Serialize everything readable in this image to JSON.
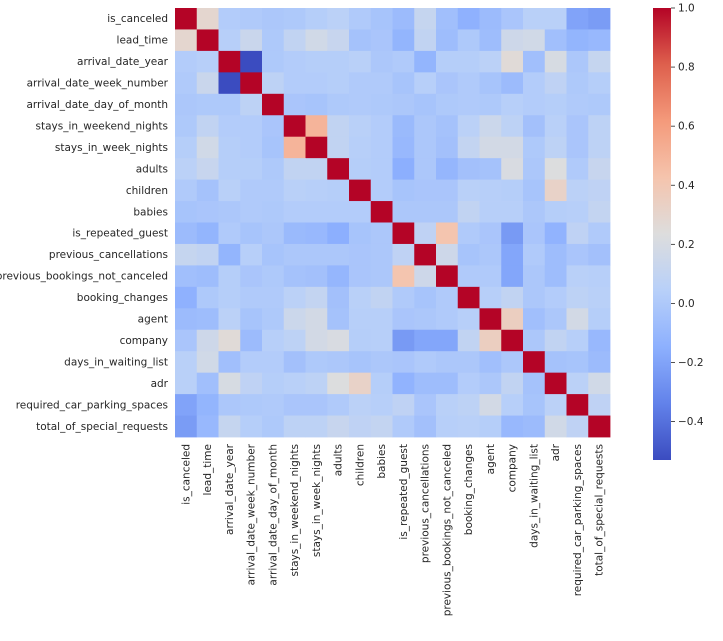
{
  "chart_data": {
    "type": "heatmap",
    "title": "",
    "colormap": "coolwarm",
    "value_range": [
      -0.53,
      1.0
    ],
    "colorbar_ticks": [
      "1.0",
      "0.8",
      "0.6",
      "0.4",
      "0.2",
      "0.0",
      "−0.2",
      "−0.4"
    ],
    "colorbar_tick_values": [
      1.0,
      0.8,
      0.6,
      0.4,
      0.2,
      0.0,
      -0.2,
      -0.4
    ],
    "variables": [
      "is_canceled",
      "lead_time",
      "arrival_date_year",
      "arrival_date_week_number",
      "arrival_date_day_of_month",
      "stays_in_weekend_nights",
      "stays_in_week_nights",
      "adults",
      "children",
      "babies",
      "is_repeated_guest",
      "previous_cancellations",
      "previous_bookings_not_canceled",
      "booking_changes",
      "agent",
      "company",
      "days_in_waiting_list",
      "adr",
      "required_car_parking_spaces",
      "total_of_special_requests"
    ],
    "matrix": [
      [
        1.0,
        0.29,
        0.02,
        0.01,
        -0.01,
        -0.0,
        0.03,
        0.06,
        0.01,
        -0.03,
        -0.08,
        0.11,
        -0.06,
        -0.14,
        -0.08,
        -0.02,
        0.05,
        0.05,
        -0.2,
        -0.23
      ],
      [
        0.29,
        1.0,
        0.04,
        0.13,
        0.0,
        0.09,
        0.17,
        0.12,
        -0.04,
        -0.02,
        -0.12,
        0.09,
        -0.07,
        0.0,
        -0.07,
        0.15,
        0.17,
        -0.06,
        -0.12,
        -0.1
      ],
      [
        0.02,
        0.04,
        1.0,
        -0.54,
        -0.0,
        0.02,
        0.03,
        0.03,
        0.05,
        -0.01,
        0.01,
        -0.12,
        0.03,
        0.03,
        0.06,
        0.26,
        -0.06,
        0.2,
        -0.01,
        0.11
      ],
      [
        0.01,
        0.13,
        -0.54,
        1.0,
        0.07,
        0.02,
        0.02,
        0.03,
        0.01,
        0.01,
        -0.03,
        0.04,
        -0.02,
        0.01,
        -0.03,
        -0.08,
        0.02,
        0.08,
        0.0,
        0.03
      ],
      [
        -0.01,
        0.0,
        -0.0,
        0.07,
        1.0,
        -0.02,
        -0.03,
        -0.0,
        0.01,
        -0.0,
        -0.01,
        -0.03,
        -0.0,
        0.01,
        0.0,
        0.04,
        0.02,
        0.03,
        0.01,
        0.0
      ],
      [
        -0.0,
        0.09,
        0.02,
        0.02,
        -0.02,
        1.0,
        0.5,
        0.09,
        0.05,
        0.02,
        -0.09,
        -0.01,
        -0.04,
        0.06,
        0.14,
        0.07,
        -0.05,
        0.05,
        -0.02,
        0.07
      ],
      [
        0.03,
        0.17,
        0.03,
        0.02,
        -0.03,
        0.5,
        1.0,
        0.09,
        0.04,
        0.02,
        -0.1,
        -0.01,
        -0.05,
        0.1,
        0.18,
        0.18,
        -0.0,
        0.07,
        -0.02,
        0.07
      ],
      [
        0.06,
        0.12,
        0.03,
        0.03,
        -0.0,
        0.09,
        0.09,
        1.0,
        0.03,
        0.02,
        -0.15,
        -0.01,
        -0.11,
        -0.05,
        -0.04,
        0.21,
        -0.01,
        0.23,
        0.01,
        0.12
      ],
      [
        0.01,
        -0.04,
        0.05,
        0.01,
        0.01,
        0.05,
        0.04,
        0.03,
        1.0,
        0.02,
        -0.03,
        -0.02,
        -0.02,
        0.05,
        0.04,
        0.03,
        -0.03,
        0.32,
        0.06,
        0.08
      ],
      [
        -0.03,
        -0.02,
        -0.01,
        0.01,
        -0.0,
        0.02,
        0.02,
        0.02,
        0.02,
        1.0,
        -0.01,
        -0.01,
        -0.01,
        0.09,
        0.04,
        0.04,
        -0.01,
        0.03,
        0.04,
        0.1
      ],
      [
        -0.08,
        -0.12,
        0.01,
        -0.03,
        -0.01,
        -0.09,
        -0.1,
        -0.15,
        -0.03,
        -0.01,
        1.0,
        0.08,
        0.42,
        0.01,
        -0.02,
        -0.24,
        -0.02,
        -0.13,
        0.08,
        0.01
      ],
      [
        0.11,
        0.09,
        -0.12,
        0.04,
        -0.03,
        -0.01,
        -0.01,
        -0.01,
        -0.02,
        -0.01,
        0.08,
        1.0,
        0.15,
        -0.03,
        -0.01,
        -0.19,
        0.01,
        -0.07,
        -0.02,
        -0.05
      ],
      [
        -0.06,
        -0.07,
        0.03,
        -0.02,
        -0.0,
        -0.04,
        -0.05,
        -0.11,
        -0.02,
        -0.01,
        0.42,
        0.15,
        1.0,
        0.01,
        0.01,
        -0.19,
        -0.01,
        -0.07,
        0.05,
        0.04
      ],
      [
        -0.14,
        0.0,
        0.03,
        0.01,
        0.01,
        0.06,
        0.1,
        -0.05,
        0.05,
        0.09,
        0.01,
        -0.03,
        0.01,
        1.0,
        0.04,
        0.09,
        -0.01,
        0.02,
        0.07,
        0.05
      ],
      [
        -0.08,
        -0.07,
        0.06,
        -0.03,
        0.0,
        0.14,
        0.18,
        -0.04,
        0.04,
        0.04,
        -0.02,
        -0.01,
        0.01,
        0.04,
        1.0,
        0.35,
        -0.06,
        -0.01,
        0.18,
        0.03
      ],
      [
        -0.02,
        0.15,
        0.26,
        -0.08,
        0.04,
        0.07,
        0.18,
        0.21,
        0.03,
        0.04,
        -0.24,
        -0.19,
        -0.19,
        0.09,
        0.35,
        1.0,
        -0.01,
        0.09,
        0.04,
        -0.1
      ],
      [
        0.05,
        0.17,
        -0.06,
        0.02,
        0.02,
        -0.05,
        -0.0,
        -0.01,
        -0.03,
        -0.01,
        -0.02,
        0.01,
        -0.01,
        -0.01,
        -0.06,
        -0.01,
        1.0,
        -0.04,
        -0.03,
        -0.08
      ],
      [
        0.05,
        -0.06,
        0.2,
        0.08,
        0.03,
        0.05,
        0.07,
        0.23,
        0.32,
        0.03,
        -0.13,
        -0.07,
        -0.07,
        0.02,
        -0.01,
        0.09,
        -0.04,
        1.0,
        0.06,
        0.17
      ],
      [
        -0.2,
        -0.12,
        -0.01,
        0.0,
        0.01,
        -0.02,
        -0.02,
        0.01,
        0.06,
        0.04,
        0.08,
        -0.02,
        0.05,
        0.07,
        0.18,
        0.04,
        -0.03,
        0.06,
        1.0,
        0.08
      ],
      [
        -0.23,
        -0.1,
        0.11,
        0.03,
        0.0,
        0.07,
        0.07,
        0.12,
        0.08,
        0.1,
        0.01,
        -0.05,
        0.04,
        0.05,
        0.03,
        -0.1,
        -0.08,
        0.17,
        0.08,
        1.0
      ]
    ]
  }
}
